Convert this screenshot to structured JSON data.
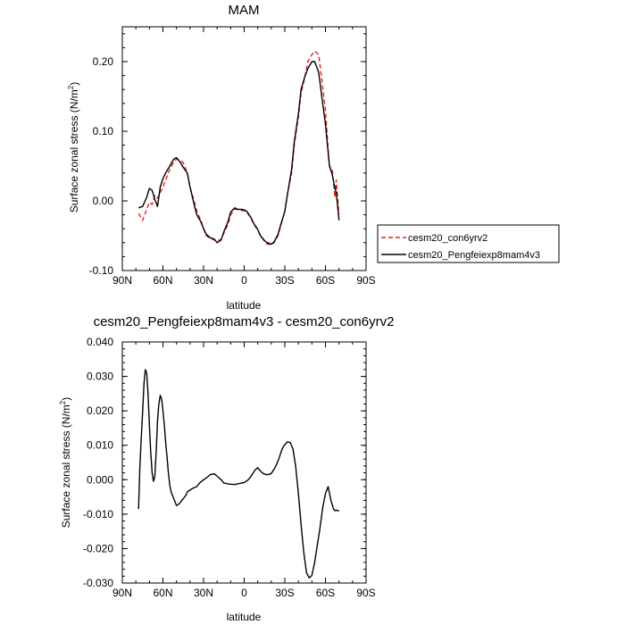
{
  "chart_data": [
    {
      "type": "line",
      "title": "MAM",
      "xlabel": "latitude",
      "ylabel": "Surface zonal stress (N/m",
      "ylabel_sup": "2",
      "ylabel_close": ")",
      "xlim": [
        90,
        -90
      ],
      "ylim": [
        -0.1,
        0.25
      ],
      "x_ticks": [
        90,
        60,
        30,
        0,
        -30,
        -60,
        -90
      ],
      "x_tick_labels": [
        "90N",
        "60N",
        "30N",
        "0",
        "30S",
        "60S",
        "90S"
      ],
      "y_ticks": [
        -0.1,
        0.0,
        0.1,
        0.2
      ],
      "y_tick_labels": [
        "-0.10",
        "0.00",
        "0.10",
        "0.20"
      ],
      "grid": false,
      "legend": "right",
      "series": [
        {
          "name": "cesm20_con6yrv2",
          "color": "#e8201a",
          "dash": "dashed",
          "x": [
            78,
            75,
            72,
            70,
            68,
            66,
            64,
            62,
            60,
            58,
            55,
            52,
            50,
            47,
            45,
            42,
            40,
            37,
            35,
            32,
            30,
            28,
            25,
            22,
            20,
            17,
            15,
            12,
            10,
            7,
            5,
            2,
            0,
            -2,
            -5,
            -7,
            -10,
            -12,
            -15,
            -17,
            -20,
            -22,
            -25,
            -27,
            -30,
            -32,
            -35,
            -37,
            -40,
            -42,
            -45,
            -47,
            -50,
            -52,
            -55,
            -57,
            -60,
            -62,
            -63,
            -65,
            -67,
            -68,
            -70
          ],
          "y": [
            -0.018,
            -0.028,
            -0.012,
            -0.002,
            -0.005,
            0.008,
            0.004,
            0.012,
            0.02,
            0.03,
            0.045,
            0.056,
            0.06,
            0.058,
            0.055,
            0.04,
            0.02,
            0.0,
            -0.015,
            -0.028,
            -0.04,
            -0.05,
            -0.054,
            -0.056,
            -0.058,
            -0.055,
            -0.046,
            -0.034,
            -0.02,
            -0.012,
            -0.012,
            -0.014,
            -0.014,
            -0.016,
            -0.025,
            -0.033,
            -0.042,
            -0.05,
            -0.058,
            -0.062,
            -0.063,
            -0.06,
            -0.05,
            -0.035,
            -0.015,
            0.01,
            0.04,
            0.08,
            0.12,
            0.155,
            0.18,
            0.2,
            0.21,
            0.215,
            0.21,
            0.18,
            0.13,
            0.075,
            0.05,
            0.045,
            0.005,
            0.03,
            -0.02
          ]
        },
        {
          "name": "cesm20_Pengfeiexp8mam4v3",
          "color": "#000000",
          "dash": "solid",
          "x": [
            78,
            75,
            72,
            70,
            68,
            66,
            64,
            62,
            60,
            58,
            55,
            52,
            50,
            47,
            45,
            42,
            40,
            37,
            35,
            32,
            30,
            28,
            25,
            22,
            20,
            17,
            15,
            12,
            10,
            7,
            5,
            2,
            0,
            -2,
            -5,
            -7,
            -10,
            -12,
            -15,
            -17,
            -20,
            -22,
            -25,
            -27,
            -30,
            -32,
            -35,
            -37,
            -40,
            -42,
            -45,
            -47,
            -50,
            -52,
            -55,
            -57,
            -60,
            -62,
            -63,
            -65,
            -67,
            -68,
            -70
          ],
          "y": [
            -0.01,
            -0.008,
            0.005,
            0.018,
            0.015,
            0.002,
            -0.008,
            0.02,
            0.032,
            0.04,
            0.05,
            0.06,
            0.062,
            0.055,
            0.048,
            0.04,
            0.02,
            -0.005,
            -0.02,
            -0.03,
            -0.04,
            -0.048,
            -0.053,
            -0.055,
            -0.06,
            -0.056,
            -0.044,
            -0.03,
            -0.016,
            -0.01,
            -0.012,
            -0.012,
            -0.013,
            -0.015,
            -0.024,
            -0.032,
            -0.041,
            -0.05,
            -0.057,
            -0.06,
            -0.062,
            -0.059,
            -0.048,
            -0.034,
            -0.015,
            0.01,
            0.045,
            0.085,
            0.125,
            0.16,
            0.18,
            0.19,
            0.2,
            0.2,
            0.185,
            0.155,
            0.11,
            0.07,
            0.05,
            0.038,
            0.018,
            0.012,
            -0.028
          ]
        }
      ]
    },
    {
      "type": "line",
      "title": "cesm20_Pengfeiexp8mam4v3 - cesm20_con6yrv2",
      "xlabel": "latitude",
      "ylabel": "Surface zonal stress (N/m",
      "ylabel_sup": "2",
      "ylabel_close": ")",
      "xlim": [
        90,
        -90
      ],
      "ylim": [
        -0.03,
        0.04
      ],
      "x_ticks": [
        90,
        60,
        30,
        0,
        -30,
        -60,
        -90
      ],
      "x_tick_labels": [
        "90N",
        "60N",
        "30N",
        "0",
        "30S",
        "60S",
        "90S"
      ],
      "y_ticks": [
        -0.03,
        -0.02,
        -0.01,
        0.0,
        0.01,
        0.02,
        0.03,
        0.04
      ],
      "y_tick_labels": [
        "-0.030",
        "-0.020",
        "-0.010",
        "0.000",
        "0.010",
        "0.020",
        "0.030",
        "0.040"
      ],
      "grid": false,
      "series": [
        {
          "name": "",
          "color": "#000000",
          "dash": "solid",
          "x": [
            78,
            77,
            76,
            75,
            74,
            73,
            72,
            71,
            70,
            69,
            68,
            67,
            66,
            65,
            64,
            63,
            62,
            61,
            60,
            59,
            58,
            57,
            56,
            55,
            54,
            52,
            50,
            48,
            46,
            45,
            43,
            42,
            40,
            38,
            35,
            33,
            30,
            28,
            25,
            22,
            20,
            17,
            15,
            12,
            10,
            7,
            5,
            2,
            0,
            -3,
            -5,
            -8,
            -10,
            -12,
            -14,
            -16,
            -18,
            -20,
            -22,
            -24,
            -26,
            -28,
            -30,
            -32,
            -34,
            -36,
            -38,
            -40,
            -42,
            -44,
            -46,
            -48,
            -50,
            -52,
            -54,
            -56,
            -58,
            -60,
            -62,
            -64,
            -66,
            -67,
            -68,
            -69,
            -70
          ],
          "y": [
            -0.0085,
            0.004,
            0.012,
            0.02,
            0.028,
            0.032,
            0.031,
            0.025,
            0.016,
            0.008,
            0.002,
            -0.0005,
            0.001,
            0.008,
            0.017,
            0.022,
            0.0245,
            0.0235,
            0.02,
            0.016,
            0.011,
            0.0065,
            0.002,
            -0.0015,
            -0.0035,
            -0.0055,
            -0.0075,
            -0.007,
            -0.006,
            -0.0055,
            -0.0045,
            -0.0035,
            -0.003,
            -0.0025,
            -0.002,
            -0.001,
            0.0,
            0.0005,
            0.0015,
            0.0017,
            0.001,
            0.0,
            -0.001,
            -0.0012,
            -0.0013,
            -0.0014,
            -0.0012,
            -0.001,
            -0.0008,
            0.0,
            0.001,
            0.0028,
            0.0035,
            0.0025,
            0.0018,
            0.0015,
            0.0015,
            0.0018,
            0.003,
            0.0045,
            0.0065,
            0.009,
            0.0102,
            0.011,
            0.0108,
            0.009,
            0.004,
            -0.004,
            -0.013,
            -0.021,
            -0.027,
            -0.0285,
            -0.0278,
            -0.024,
            -0.019,
            -0.014,
            -0.008,
            -0.004,
            -0.002,
            -0.006,
            -0.0085,
            -0.009,
            -0.0088,
            -0.009,
            -0.009
          ]
        }
      ]
    }
  ]
}
